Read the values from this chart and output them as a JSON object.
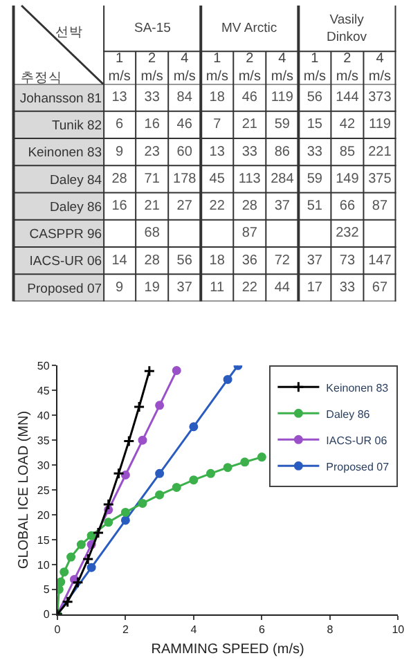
{
  "chart_data": [
    {
      "type": "heatmap",
      "categories": [
        "1\nm/s",
        "2\nm/s",
        "4\nm/s",
        "1\nm/s",
        "2\nm/s",
        "4\nm/s",
        "1\nm/s",
        "2\nm/s",
        "4\nm/s"
      ],
      "y_categories": [
        "Johansson 81",
        "Tunik 82",
        "Keinonen 83",
        "Daley 84",
        "Daley 86",
        "CASPPR 96",
        "IACS-UR 06",
        "Proposed 07"
      ],
      "cells": [
        [
          13,
          33,
          84,
          18,
          46,
          119,
          56,
          144,
          373
        ],
        [
          6,
          16,
          46,
          7,
          21,
          59,
          15,
          42,
          119
        ],
        [
          9,
          23,
          60,
          13,
          33,
          86,
          33,
          85,
          221
        ],
        [
          28,
          71,
          178,
          45,
          113,
          284,
          59,
          149,
          375
        ],
        [
          16,
          21,
          27,
          22,
          28,
          37,
          51,
          66,
          87
        ],
        [
          null,
          68,
          null,
          null,
          87,
          null,
          null,
          232,
          null
        ],
        [
          14,
          28,
          56,
          18,
          36,
          72,
          37,
          73,
          147
        ],
        [
          9,
          19,
          37,
          11,
          22,
          44,
          17,
          33,
          67
        ]
      ],
      "data_labels": true,
      "annotations": [
        "선박",
        "추정식",
        "SA-15",
        "MV Arctic",
        "Vasily\nDinkov"
      ]
    },
    {
      "type": "line",
      "xlabel": "RAMMING SPEED (m/s)",
      "ylabel": "GLOBAL ICE LOAD (MN)",
      "xlim": [
        0,
        10
      ],
      "xticks": [
        0,
        2,
        4,
        6,
        8,
        10
      ],
      "ylim": [
        0,
        50
      ],
      "yticks": [
        0,
        5,
        10,
        15,
        20,
        25,
        30,
        35,
        40,
        45,
        50
      ],
      "legend": "top right",
      "line_style": "solid",
      "series": [
        {
          "name": "Keinonen 83",
          "color": "#000000",
          "marker": "cross",
          "x": [
            0,
            0.3,
            0.6,
            0.9,
            1.2,
            1.5,
            1.8,
            2.1,
            2.4,
            2.7
          ],
          "values": [
            0,
            2.5,
            6.4,
            11.1,
            16.4,
            22.1,
            28.3,
            34.8,
            41.7,
            48.9
          ]
        },
        {
          "name": "Daley 86",
          "color": "#3cb04a",
          "marker": "circle",
          "x": [
            0,
            0.05,
            0.1,
            0.2,
            0.4,
            0.7,
            1,
            1.5,
            2,
            2.5,
            3,
            3.5,
            4,
            4.5,
            5,
            5.5,
            6
          ],
          "values": [
            0,
            5,
            6.5,
            8.5,
            11.5,
            14,
            15.8,
            18.5,
            20.5,
            22.3,
            24,
            25.5,
            27,
            28.3,
            29.5,
            30.6,
            31.6
          ]
        },
        {
          "name": "IACS-UR 06",
          "color": "#9a50c8",
          "marker": "circle",
          "x": [
            0,
            0.5,
            1,
            1.5,
            2,
            2.5,
            3,
            3.5
          ],
          "values": [
            0,
            7,
            14,
            21,
            28,
            35,
            42,
            49
          ]
        },
        {
          "name": "Proposed 07",
          "color": "#2a5cc0",
          "marker": "circle",
          "x": [
            0,
            1,
            2,
            3,
            4,
            5,
            5.3
          ],
          "values": [
            0,
            9.4,
            18.9,
            28.3,
            37.7,
            47.2,
            50
          ]
        }
      ]
    }
  ]
}
